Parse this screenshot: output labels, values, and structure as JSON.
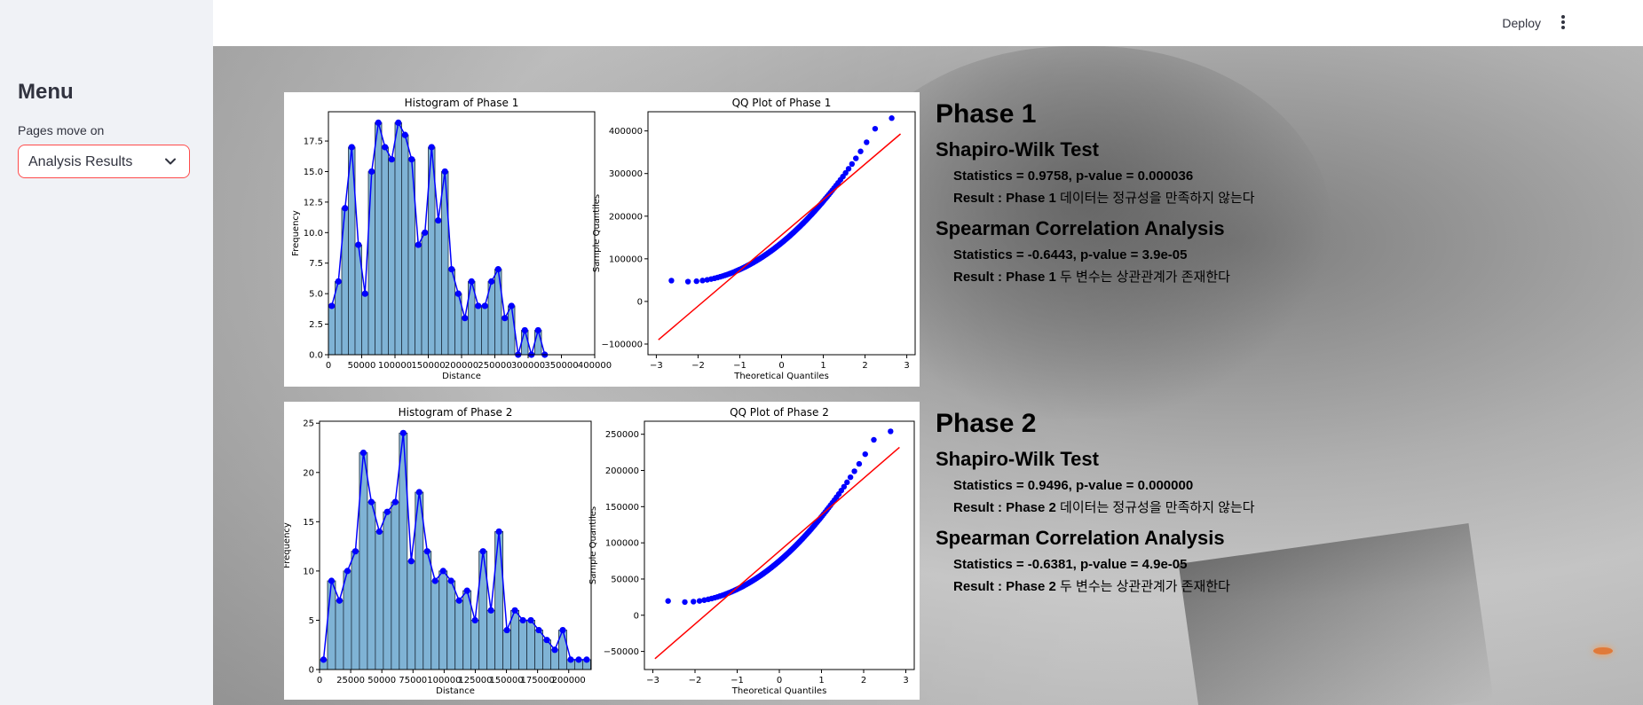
{
  "sidebar": {
    "title": "Menu",
    "select_label": "Pages move on",
    "selected_page": "Analysis Results",
    "chevron_icon": "chevron-down-icon"
  },
  "header": {
    "deploy_label": "Deploy",
    "menu_icon": "kebab-menu-icon"
  },
  "colors": {
    "accent_border": "#ff4b4b",
    "sidebar_bg": "#f0f2f6",
    "bar_fill": "#7fb3d5",
    "kde_line": "#0000ff",
    "qq_points": "#0000ff",
    "ref_line": "#ff0000"
  },
  "phase1": {
    "heading": "Phase 1",
    "shapiro_title": "Shapiro-Wilk Test",
    "shapiro_stats": "Statistics = 0.9758, p-value = 0.000036",
    "shapiro_result_prefix": "Result : Phase 1",
    "shapiro_result_text": " 데이터는 정규성을 만족하지 않는다",
    "spearman_title": "Spearman Correlation Analysis",
    "spearman_stats": "Statistics = -0.6443, p-value = 3.9e-05",
    "spearman_result_prefix": "Result : Phase 1",
    "spearman_result_text": " 두 변수는 상관관계가 존재한다"
  },
  "phase2": {
    "heading": "Phase 2",
    "shapiro_title": "Shapiro-Wilk Test",
    "shapiro_stats": "Statistics = 0.9496, p-value = 0.000000",
    "shapiro_result_prefix": "Result : Phase 2",
    "shapiro_result_text": " 데이터는 정규성을 만족하지 않는다",
    "spearman_title": "Spearman Correlation Analysis",
    "spearman_stats": "Statistics = -0.6381, p-value = 4.9e-05",
    "spearman_result_prefix": "Result : Phase 2",
    "spearman_result_text": " 두 변수는 상관관계가 존재한다"
  },
  "chart_data": [
    {
      "id": "hist1",
      "type": "bar",
      "title": "Histogram of Phase 1",
      "xlabel": "Distance",
      "ylabel": "Frequency",
      "xlim": [
        0,
        400000
      ],
      "ylim": [
        0,
        19.9
      ],
      "xticks": [
        0,
        50000,
        100000,
        150000,
        200000,
        250000,
        300000,
        350000,
        400000
      ],
      "xtick_labels": [
        "0",
        "50000",
        "100000",
        "150000",
        "200000",
        "250000",
        "300000",
        "350000",
        "400000"
      ],
      "yticks": [
        0,
        2.5,
        5.0,
        7.5,
        10.0,
        12.5,
        15.0,
        17.5
      ],
      "ytick_labels": [
        "0.0",
        "2.5",
        "5.0",
        "7.5",
        "10.0",
        "12.5",
        "15.0",
        "17.5"
      ],
      "bin_width": 10000,
      "bin_start": 0,
      "values": [
        4,
        6,
        12,
        17,
        9,
        5,
        15,
        19,
        17,
        16,
        19,
        18,
        16,
        9,
        10,
        17,
        11,
        15,
        7,
        5,
        3,
        6,
        4,
        4,
        6,
        7,
        3,
        4,
        0,
        2,
        0,
        2,
        0
      ]
    },
    {
      "id": "qq1",
      "type": "scatter",
      "title": "QQ Plot of Phase 1",
      "xlabel": "Theoretical Quantiles",
      "ylabel": "Sample Quantiles",
      "xlim": [
        -3.2,
        3.2
      ],
      "ylim": [
        -125000,
        445000
      ],
      "xticks": [
        -3,
        -2,
        -1,
        0,
        1,
        2,
        3
      ],
      "xtick_labels": [
        "−3",
        "−2",
        "−1",
        "0",
        "1",
        "2",
        "3"
      ],
      "yticks": [
        -100000,
        0,
        100000,
        200000,
        300000,
        400000
      ],
      "ytick_labels": [
        "−100000",
        "0",
        "100000",
        "200000",
        "300000",
        "400000"
      ],
      "mean": 155000,
      "sd": 80000,
      "min": 0,
      "max": 430000,
      "line": [
        [
          -2.95,
          -90000
        ],
        [
          2.85,
          393000
        ]
      ]
    },
    {
      "id": "hist2",
      "type": "bar",
      "title": "Histogram of Phase 2",
      "xlabel": "Distance",
      "ylabel": "Frequency",
      "xlim": [
        0,
        218000
      ],
      "ylim": [
        0,
        25.2
      ],
      "xticks": [
        0,
        25000,
        50000,
        75000,
        100000,
        125000,
        150000,
        175000,
        200000
      ],
      "xtick_labels": [
        "0",
        "25000",
        "50000",
        "75000",
        "100000",
        "125000",
        "150000",
        "175000",
        "200000"
      ],
      "yticks": [
        0,
        5,
        10,
        15,
        20,
        25
      ],
      "ytick_labels": [
        "0",
        "5",
        "10",
        "15",
        "20",
        "25"
      ],
      "bin_width": 6400,
      "bin_start": 0,
      "values": [
        1,
        9,
        7,
        10,
        12,
        22,
        17,
        14,
        16,
        17,
        24,
        11,
        18,
        12,
        9,
        10,
        9,
        7,
        8,
        5,
        12,
        6,
        14,
        4,
        6,
        5,
        5,
        4,
        3,
        2,
        4,
        1,
        1,
        1
      ]
    },
    {
      "id": "qq2",
      "type": "scatter",
      "title": "QQ Plot of Phase 2",
      "xlabel": "Theoretical Quantiles",
      "ylabel": "Sample Quantiles",
      "xlim": [
        -3.2,
        3.2
      ],
      "ylim": [
        -75000,
        268000
      ],
      "xticks": [
        -3,
        -2,
        -1,
        0,
        1,
        2,
        3
      ],
      "xtick_labels": [
        "−3",
        "−2",
        "−1",
        "0",
        "1",
        "2",
        "3"
      ],
      "yticks": [
        -50000,
        0,
        50000,
        100000,
        150000,
        200000,
        250000
      ],
      "ytick_labels": [
        "−50000",
        "0",
        "50000",
        "100000",
        "150000",
        "200000",
        "250000"
      ],
      "mean": 86000,
      "sd": 50000,
      "min": 6000,
      "max": 254000,
      "line": [
        [
          -2.95,
          -60000
        ],
        [
          2.85,
          232000
        ]
      ]
    }
  ]
}
